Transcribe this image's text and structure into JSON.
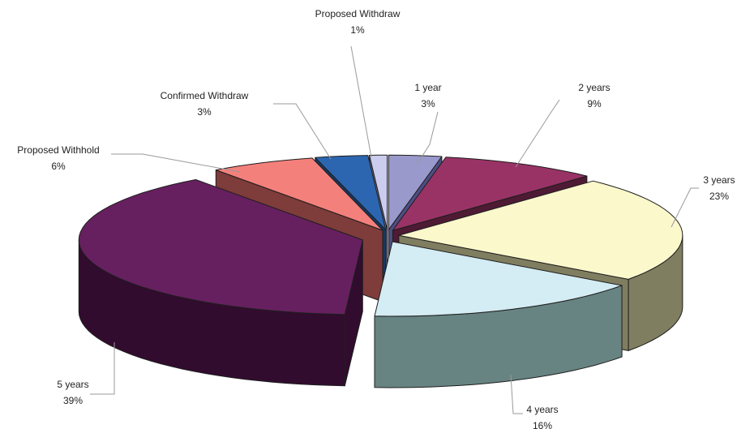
{
  "chart_data": {
    "type": "pie",
    "title": "",
    "style": "3d-exploded",
    "slices": [
      {
        "name": "1 year",
        "label": "1 year",
        "pct_label": "3%",
        "value": 3,
        "color": "#9999cc",
        "dark": "#4e4e85"
      },
      {
        "name": "2 years",
        "label": "2 years",
        "pct_label": "9%",
        "value": 9,
        "color": "#993366",
        "dark": "#4e1a34"
      },
      {
        "name": "3 years",
        "label": "3 years",
        "pct_label": "23%",
        "value": 23,
        "color": "#fbf8cc",
        "dark": "#807e60"
      },
      {
        "name": "4 years",
        "label": "4 years",
        "pct_label": "16%",
        "value": 16,
        "color": "#d4ecf3",
        "dark": "#678482"
      },
      {
        "name": "5 years",
        "label": "5 years",
        "pct_label": "39%",
        "value": 39,
        "color": "#66205f",
        "dark": "#310c2e"
      },
      {
        "name": "Proposed Withhold",
        "label": "Proposed Withhold",
        "pct_label": "6%",
        "value": 6,
        "color": "#f4807c",
        "dark": "#7e3c3a"
      },
      {
        "name": "Confirmed Withdraw",
        "label": "Confirmed Withdraw",
        "pct_label": "3%",
        "value": 3,
        "color": "#2d66b0",
        "dark": "#173861"
      },
      {
        "name": "Proposed Withdraw",
        "label": "Proposed Withdraw",
        "pct_label": "1%",
        "value": 1,
        "color": "#ccccee",
        "dark": "#6b6b8e"
      }
    ],
    "legend": "none"
  }
}
